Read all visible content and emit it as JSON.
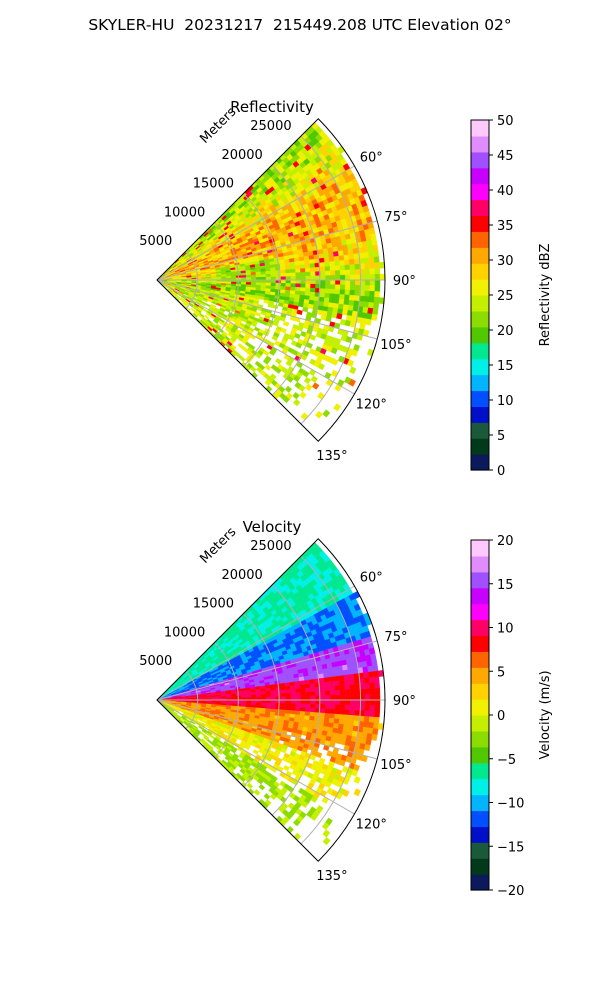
{
  "figure": {
    "title": "SKYLER-HU  20231217  215449.208 UTC Elevation 02°"
  },
  "chart_data": [
    {
      "type": "heatmap",
      "title": "Reflectivity",
      "projection": "polar-sector",
      "theta_zero": "north",
      "theta_direction": "clockwise",
      "theta_range_deg": [
        45,
        135
      ],
      "theta_tick_labels": [
        "60°",
        "75°",
        "90°",
        "105°",
        "120°",
        "135°"
      ],
      "theta_ticks_deg": [
        60,
        75,
        90,
        105,
        120,
        135
      ],
      "r_label": "Meters",
      "r_range": [
        0,
        28000
      ],
      "r_tick_labels": [
        "5000",
        "10000",
        "15000",
        "20000",
        "25000"
      ],
      "r_ticks": [
        5000,
        10000,
        15000,
        20000,
        25000
      ],
      "grid": true,
      "colorbar": {
        "label": "Reflectivity dBZ",
        "range": [
          0,
          50
        ],
        "tick_labels": [
          "0",
          "5",
          "10",
          "15",
          "20",
          "25",
          "30",
          "35",
          "40",
          "45",
          "50"
        ],
        "ticks": [
          0,
          5,
          10,
          15,
          20,
          25,
          30,
          35,
          40,
          45,
          50
        ],
        "colors": [
          "#0a1a5a",
          "#003a1a",
          "#1a5a3a",
          "#0010c8",
          "#0050ff",
          "#00b4ff",
          "#00f0e8",
          "#00e890",
          "#50c800",
          "#8cdc00",
          "#c4f000",
          "#f0f000",
          "#ffd200",
          "#ffa800",
          "#ff6400",
          "#ff0000",
          "#ff0064",
          "#ff00ff",
          "#c800ff",
          "#a050ff",
          "#e08cff",
          "#ffc8ff"
        ]
      },
      "field_description_colors": {
        "dominant": "#ffd21e",
        "secondary": "#b4f01e",
        "streaks": "#ff5a00"
      }
    },
    {
      "type": "heatmap",
      "title": "Velocity",
      "projection": "polar-sector",
      "theta_zero": "north",
      "theta_direction": "clockwise",
      "theta_range_deg": [
        45,
        135
      ],
      "theta_tick_labels": [
        "60°",
        "75°",
        "90°",
        "105°",
        "120°",
        "135°"
      ],
      "theta_ticks_deg": [
        60,
        75,
        90,
        105,
        120,
        135
      ],
      "r_label": "Meters",
      "r_range": [
        0,
        28000
      ],
      "r_tick_labels": [
        "5000",
        "10000",
        "15000",
        "20000",
        "25000"
      ],
      "r_ticks": [
        5000,
        10000,
        15000,
        20000,
        25000
      ],
      "grid": true,
      "colorbar": {
        "label": "Velocity (m/s)",
        "range": [
          -20,
          20
        ],
        "tick_labels": [
          "−20",
          "−15",
          "−10",
          "−5",
          "0",
          "5",
          "10",
          "15",
          "20"
        ],
        "ticks": [
          -20,
          -15,
          -10,
          -5,
          0,
          5,
          10,
          15,
          20
        ],
        "colors": [
          "#0a1a5a",
          "#003a1a",
          "#1a5a3a",
          "#0010c8",
          "#0050ff",
          "#00b4ff",
          "#00f0e8",
          "#00e890",
          "#50c800",
          "#8cdc00",
          "#c4f000",
          "#f0f000",
          "#ffd200",
          "#ffa800",
          "#ff6400",
          "#ff0000",
          "#ff0064",
          "#ff00ff",
          "#c800ff",
          "#a050ff",
          "#e08cff",
          "#ffc8ff"
        ]
      },
      "field_bands": [
        {
          "theta_deg": [
            45,
            62
          ],
          "value": -7
        },
        {
          "theta_deg": [
            62,
            74
          ],
          "value": -11
        },
        {
          "theta_deg": [
            74,
            82
          ],
          "value": 15
        },
        {
          "theta_deg": [
            82,
            95
          ],
          "value": 9
        },
        {
          "theta_deg": [
            95,
            110
          ],
          "value": 5
        },
        {
          "theta_deg": [
            110,
            122
          ],
          "value": 1
        },
        {
          "theta_deg": [
            122,
            135
          ],
          "value": -2
        }
      ]
    }
  ]
}
